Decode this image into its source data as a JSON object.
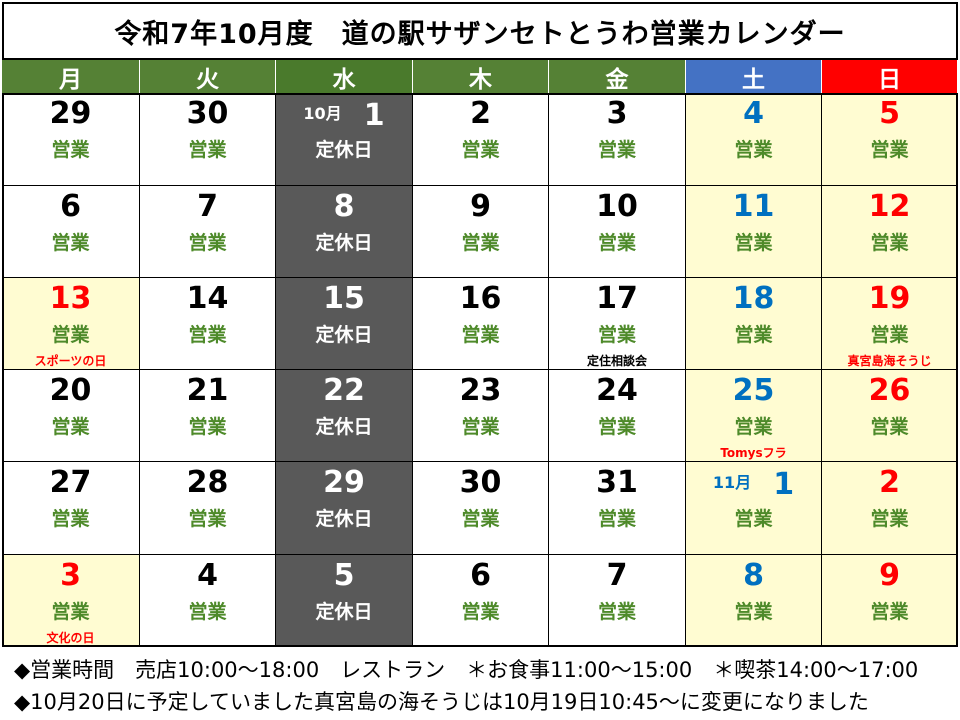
{
  "title": "令和7年10月度　道の駅サザンセトとうわ営業カレンダー",
  "colors": {
    "weekday_header": "#558135",
    "closed_header": "#4a7a2c",
    "sat_header": "#4472c4",
    "sun_header": "#ff0000",
    "weekday_text": "#000000",
    "sat_text": "#0070c0",
    "sun_text": "#ff0000",
    "status_open": "#4e8a2a",
    "status_closed": "#ffffff",
    "weekend_bg": "#fffcd2",
    "closed_bg": "#595959"
  },
  "weekdays": [
    "月",
    "火",
    "水",
    "木",
    "金",
    "土",
    "日"
  ],
  "weeks": [
    [
      {
        "day": "29",
        "status": "営業"
      },
      {
        "day": "30",
        "status": "営業"
      },
      {
        "month": "10月",
        "day": "1",
        "status": "定休日"
      },
      {
        "day": "2",
        "status": "営業"
      },
      {
        "day": "3",
        "status": "営業"
      },
      {
        "day": "4",
        "status": "営業"
      },
      {
        "day": "5",
        "status": "営業"
      }
    ],
    [
      {
        "day": "6",
        "status": "営業"
      },
      {
        "day": "7",
        "status": "営業"
      },
      {
        "day": "8",
        "status": "定休日"
      },
      {
        "day": "9",
        "status": "営業"
      },
      {
        "day": "10",
        "status": "営業"
      },
      {
        "day": "11",
        "status": "営業"
      },
      {
        "day": "12",
        "status": "営業"
      }
    ],
    [
      {
        "day": "13",
        "status": "営業",
        "note": "スポーツの日",
        "holiday": true
      },
      {
        "day": "14",
        "status": "営業"
      },
      {
        "day": "15",
        "status": "定休日"
      },
      {
        "day": "16",
        "status": "営業"
      },
      {
        "day": "17",
        "status": "営業",
        "note": "定住相談会"
      },
      {
        "day": "18",
        "status": "営業"
      },
      {
        "day": "19",
        "status": "営業",
        "note": "真宮島海そうじ"
      }
    ],
    [
      {
        "day": "20",
        "status": "営業"
      },
      {
        "day": "21",
        "status": "営業"
      },
      {
        "day": "22",
        "status": "定休日"
      },
      {
        "day": "23",
        "status": "営業"
      },
      {
        "day": "24",
        "status": "営業"
      },
      {
        "day": "25",
        "status": "営業",
        "note": "Tomysフラ"
      },
      {
        "day": "26",
        "status": "営業"
      }
    ],
    [
      {
        "day": "27",
        "status": "営業"
      },
      {
        "day": "28",
        "status": "営業"
      },
      {
        "day": "29",
        "status": "定休日"
      },
      {
        "day": "30",
        "status": "営業"
      },
      {
        "day": "31",
        "status": "営業"
      },
      {
        "month": "11月",
        "day": "1",
        "status": "営業"
      },
      {
        "day": "2",
        "status": "営業"
      }
    ],
    [
      {
        "day": "3",
        "status": "営業",
        "note": "文化の日",
        "holiday": true
      },
      {
        "day": "4",
        "status": "営業"
      },
      {
        "day": "5",
        "status": "定休日"
      },
      {
        "day": "6",
        "status": "営業"
      },
      {
        "day": "7",
        "status": "営業"
      },
      {
        "day": "8",
        "status": "営業"
      },
      {
        "day": "9",
        "status": "営業"
      }
    ]
  ],
  "footer": {
    "line1": "◆営業時間　売店10:00～18:00　レストラン　＊お食事11:00～15:00　＊喫茶14:00～17:00",
    "line2": "◆10月20日に予定していました真宮島の海そうじは10月19日10:45～に変更になりました"
  }
}
